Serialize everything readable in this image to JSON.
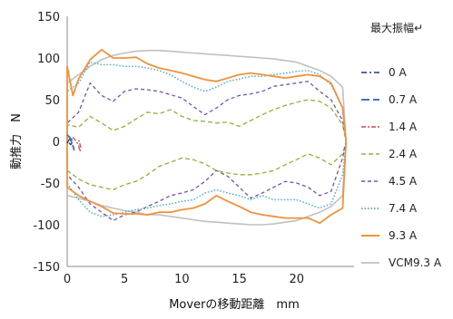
{
  "chart_data": {
    "type": "line",
    "title": "",
    "xlabel": "Moverの移動距離　mm",
    "ylabel": "動推力　N",
    "xlim": [
      0,
      25
    ],
    "ylim": [
      -150,
      150
    ],
    "xticks": [
      0,
      5,
      10,
      15,
      20
    ],
    "yticks": [
      150,
      100,
      50,
      0,
      -50,
      -100,
      -150
    ],
    "grid": false,
    "legend_title": "最大振幅↵",
    "legend_position": "right",
    "series": [
      {
        "name": "0 A",
        "color": "#1f3a7a",
        "dash": "6 3 2 3",
        "width": 1.3,
        "points": [
          [
            0,
            -2
          ],
          [
            0.3,
            5
          ],
          [
            0.5,
            0
          ],
          [
            0.3,
            -4
          ],
          [
            0.1,
            -1
          ]
        ]
      },
      {
        "name": "0.7 A",
        "color": "#4472c4",
        "dash": "9 4",
        "width": 1.8,
        "points": [
          [
            0,
            8
          ],
          [
            0.3,
            3
          ],
          [
            0.5,
            -5
          ],
          [
            0.6,
            -10
          ],
          [
            0.4,
            -2
          ],
          [
            0.2,
            6
          ]
        ]
      },
      {
        "name": "1.4 A",
        "color": "#c0504d",
        "dash": "5 2 2 2",
        "width": 1.3,
        "points": [
          [
            0.5,
            5
          ],
          [
            0.8,
            0
          ],
          [
            1,
            -5
          ],
          [
            1.1,
            -12
          ],
          [
            1.2,
            -8
          ],
          [
            1.0,
            2
          ]
        ]
      },
      {
        "name": "2.4 A",
        "color": "#8db43b",
        "dash": "5 3",
        "width": 1.3,
        "points": [
          [
            0,
            0
          ],
          [
            0,
            20
          ],
          [
            1,
            17
          ],
          [
            2,
            30
          ],
          [
            3,
            22
          ],
          [
            4,
            13
          ],
          [
            5,
            18
          ],
          [
            6,
            27
          ],
          [
            7,
            35
          ],
          [
            8,
            33
          ],
          [
            9,
            38
          ],
          [
            10,
            30
          ],
          [
            11,
            25
          ],
          [
            12,
            24
          ],
          [
            13,
            22
          ],
          [
            14,
            23
          ],
          [
            15,
            18
          ],
          [
            16,
            25
          ],
          [
            17,
            32
          ],
          [
            18,
            38
          ],
          [
            19,
            43
          ],
          [
            20,
            47
          ],
          [
            21,
            50
          ],
          [
            22,
            48
          ],
          [
            23,
            40
          ],
          [
            24,
            20
          ],
          [
            24.3,
            0
          ],
          [
            24,
            -15
          ],
          [
            23,
            -28
          ],
          [
            22,
            -20
          ],
          [
            21,
            -15
          ],
          [
            20,
            -22
          ],
          [
            19,
            -28
          ],
          [
            18,
            -35
          ],
          [
            17,
            -38
          ],
          [
            16,
            -40
          ],
          [
            15,
            -40
          ],
          [
            14,
            -38
          ],
          [
            13,
            -35
          ],
          [
            12,
            -27
          ],
          [
            11,
            -22
          ],
          [
            10,
            -20
          ],
          [
            9,
            -25
          ],
          [
            8,
            -30
          ],
          [
            7,
            -40
          ],
          [
            6,
            -48
          ],
          [
            5,
            -52
          ],
          [
            4,
            -58
          ],
          [
            3,
            -55
          ],
          [
            2,
            -52
          ],
          [
            1,
            -45
          ],
          [
            0,
            -35
          ],
          [
            0,
            0
          ]
        ]
      },
      {
        "name": "4.5 A",
        "color": "#7a50b0",
        "dash": "4 3",
        "width": 1.3,
        "points": [
          [
            0,
            0
          ],
          [
            0,
            22
          ],
          [
            1,
            35
          ],
          [
            2,
            70
          ],
          [
            3,
            55
          ],
          [
            4,
            48
          ],
          [
            5,
            60
          ],
          [
            6,
            63
          ],
          [
            7,
            62
          ],
          [
            8,
            60
          ],
          [
            9,
            56
          ],
          [
            10,
            52
          ],
          [
            11,
            42
          ],
          [
            12,
            32
          ],
          [
            13,
            40
          ],
          [
            14,
            50
          ],
          [
            15,
            55
          ],
          [
            16,
            57
          ],
          [
            17,
            60
          ],
          [
            18,
            66
          ],
          [
            19,
            68
          ],
          [
            20,
            70
          ],
          [
            21,
            72
          ],
          [
            22,
            60
          ],
          [
            23,
            50
          ],
          [
            24,
            25
          ],
          [
            24.3,
            0
          ],
          [
            24,
            -20
          ],
          [
            23,
            -60
          ],
          [
            22,
            -65
          ],
          [
            21,
            -55
          ],
          [
            20,
            -50
          ],
          [
            19,
            -48
          ],
          [
            18,
            -55
          ],
          [
            17,
            -62
          ],
          [
            16,
            -68
          ],
          [
            15,
            -55
          ],
          [
            14,
            -42
          ],
          [
            13,
            -35
          ],
          [
            12,
            -48
          ],
          [
            11,
            -58
          ],
          [
            10,
            -62
          ],
          [
            9,
            -65
          ],
          [
            8,
            -72
          ],
          [
            7,
            -78
          ],
          [
            6,
            -85
          ],
          [
            5,
            -88
          ],
          [
            4,
            -95
          ],
          [
            3,
            -85
          ],
          [
            2,
            -75
          ],
          [
            1,
            -55
          ],
          [
            0,
            -40
          ],
          [
            0,
            0
          ]
        ]
      },
      {
        "name": "7.4 A",
        "color": "#4bacc6",
        "dash": "1.5 2",
        "width": 1.5,
        "points": [
          [
            0,
            0
          ],
          [
            0,
            60
          ],
          [
            1,
            70
          ],
          [
            2,
            95
          ],
          [
            3,
            92
          ],
          [
            4,
            92
          ],
          [
            5,
            90
          ],
          [
            6,
            90
          ],
          [
            7,
            88
          ],
          [
            8,
            85
          ],
          [
            9,
            80
          ],
          [
            10,
            72
          ],
          [
            11,
            65
          ],
          [
            12,
            60
          ],
          [
            13,
            65
          ],
          [
            14,
            72
          ],
          [
            15,
            75
          ],
          [
            16,
            78
          ],
          [
            17,
            78
          ],
          [
            18,
            80
          ],
          [
            19,
            82
          ],
          [
            20,
            84
          ],
          [
            21,
            85
          ],
          [
            22,
            80
          ],
          [
            23,
            68
          ],
          [
            24,
            40
          ],
          [
            24.3,
            0
          ],
          [
            24,
            -40
          ],
          [
            23,
            -75
          ],
          [
            22,
            -80
          ],
          [
            21,
            -75
          ],
          [
            20,
            -70
          ],
          [
            19,
            -70
          ],
          [
            18,
            -70
          ],
          [
            17,
            -65
          ],
          [
            16,
            -70
          ],
          [
            15,
            -65
          ],
          [
            14,
            -62
          ],
          [
            13,
            -58
          ],
          [
            12,
            -62
          ],
          [
            11,
            -70
          ],
          [
            10,
            -72
          ],
          [
            9,
            -75
          ],
          [
            8,
            -77
          ],
          [
            7,
            -80
          ],
          [
            6,
            -82
          ],
          [
            5,
            -85
          ],
          [
            4,
            -88
          ],
          [
            3,
            -90
          ],
          [
            2,
            -85
          ],
          [
            1,
            -70
          ],
          [
            0,
            -50
          ],
          [
            0,
            0
          ]
        ]
      },
      {
        "name": "9.3 A",
        "color": "#f0923c",
        "dash": "",
        "width": 1.8,
        "points": [
          [
            0,
            0
          ],
          [
            0,
            90
          ],
          [
            0.5,
            55
          ],
          [
            1,
            75
          ],
          [
            2,
            98
          ],
          [
            3,
            110
          ],
          [
            4,
            100
          ],
          [
            5,
            100
          ],
          [
            6,
            101
          ],
          [
            7,
            93
          ],
          [
            8,
            88
          ],
          [
            9,
            85
          ],
          [
            10,
            82
          ],
          [
            11,
            78
          ],
          [
            12,
            74
          ],
          [
            13,
            72
          ],
          [
            14,
            76
          ],
          [
            15,
            80
          ],
          [
            16,
            82
          ],
          [
            17,
            80
          ],
          [
            18,
            78
          ],
          [
            19,
            76
          ],
          [
            20,
            78
          ],
          [
            21,
            80
          ],
          [
            22,
            78
          ],
          [
            23,
            70
          ],
          [
            24,
            40
          ],
          [
            24.3,
            0
          ],
          [
            24,
            -80
          ],
          [
            23,
            -88
          ],
          [
            22,
            -98
          ],
          [
            21,
            -92
          ],
          [
            20,
            -92
          ],
          [
            19,
            -92
          ],
          [
            18,
            -90
          ],
          [
            17,
            -88
          ],
          [
            16,
            -85
          ],
          [
            15,
            -78
          ],
          [
            14,
            -72
          ],
          [
            13,
            -65
          ],
          [
            12,
            -75
          ],
          [
            11,
            -80
          ],
          [
            10,
            -82
          ],
          [
            9,
            -85
          ],
          [
            8,
            -85
          ],
          [
            7,
            -88
          ],
          [
            6,
            -87
          ],
          [
            5,
            -87
          ],
          [
            4,
            -86
          ],
          [
            3,
            -78
          ],
          [
            2,
            -72
          ],
          [
            1,
            -65
          ],
          [
            0,
            -55
          ],
          [
            0,
            0
          ]
        ]
      },
      {
        "name": "VCM9.3 A",
        "color": "#c0c0c0",
        "dash": "",
        "width": 1.6,
        "points": [
          [
            0,
            -65
          ],
          [
            1,
            -68
          ],
          [
            2,
            -72
          ],
          [
            3,
            -77
          ],
          [
            4,
            -80
          ],
          [
            5,
            -83
          ],
          [
            6,
            -85
          ],
          [
            7,
            -88
          ],
          [
            8,
            -88
          ],
          [
            9,
            -90
          ],
          [
            10,
            -92
          ],
          [
            11,
            -94
          ],
          [
            12,
            -96
          ],
          [
            13,
            -97
          ],
          [
            14,
            -98
          ],
          [
            15,
            -99
          ],
          [
            16,
            -100
          ],
          [
            17,
            -100
          ],
          [
            18,
            -99
          ],
          [
            19,
            -97
          ],
          [
            20,
            -95
          ],
          [
            21,
            -90
          ],
          [
            22,
            -85
          ],
          [
            23,
            -78
          ],
          [
            24,
            -65
          ],
          [
            24.3,
            0
          ],
          [
            24,
            65
          ],
          [
            23,
            78
          ],
          [
            22,
            85
          ],
          [
            21,
            90
          ],
          [
            20,
            95
          ],
          [
            19,
            97
          ],
          [
            18,
            99
          ],
          [
            17,
            100
          ],
          [
            16,
            101
          ],
          [
            15,
            102
          ],
          [
            14,
            103
          ],
          [
            13,
            104
          ],
          [
            12,
            105
          ],
          [
            11,
            106
          ],
          [
            10,
            107
          ],
          [
            9,
            108
          ],
          [
            8,
            109
          ],
          [
            7,
            109
          ],
          [
            6,
            108
          ],
          [
            5,
            106
          ],
          [
            4,
            103
          ],
          [
            3,
            98
          ],
          [
            2,
            90
          ],
          [
            1,
            80
          ],
          [
            0,
            70
          ]
        ]
      }
    ]
  }
}
